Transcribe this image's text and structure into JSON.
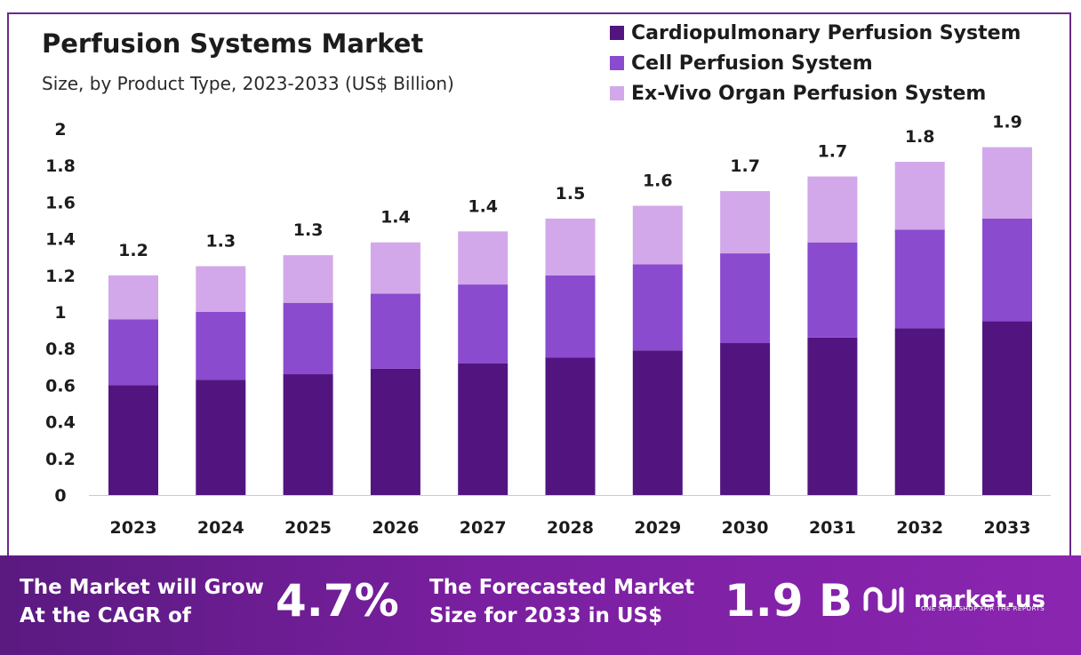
{
  "header": {
    "title": "Perfusion Systems Market",
    "subtitle": "Size, by Product Type, 2023-2033 (US$ Billion)"
  },
  "colors": {
    "cardio": "#521580",
    "cell": "#8a4bcf",
    "exvivo": "#d2a8ea",
    "footer": "#6c1f96"
  },
  "chart_data": {
    "type": "bar",
    "stacked": true,
    "categories": [
      "2023",
      "2024",
      "2025",
      "2026",
      "2027",
      "2028",
      "2029",
      "2030",
      "2031",
      "2032",
      "2033"
    ],
    "series": [
      {
        "name": "Cardiopulmonary Perfusion System",
        "values": [
          0.6,
          0.63,
          0.66,
          0.69,
          0.72,
          0.75,
          0.79,
          0.83,
          0.86,
          0.91,
          0.95
        ]
      },
      {
        "name": "Cell Perfusion System",
        "values": [
          0.36,
          0.37,
          0.39,
          0.41,
          0.43,
          0.45,
          0.47,
          0.49,
          0.52,
          0.54,
          0.56
        ]
      },
      {
        "name": "Ex-Vivo Organ Perfusion System",
        "values": [
          0.24,
          0.25,
          0.26,
          0.28,
          0.29,
          0.31,
          0.32,
          0.34,
          0.36,
          0.37,
          0.39
        ]
      }
    ],
    "totals_labels": [
      "1.2",
      "1.3",
      "1.3",
      "1.4",
      "1.4",
      "1.5",
      "1.6",
      "1.7",
      "1.7",
      "1.8",
      "1.9"
    ],
    "yticks": [
      "0",
      "0.2",
      "0.4",
      "0.6",
      "0.8",
      "1",
      "1.2",
      "1.4",
      "1.6",
      "1.8",
      "2"
    ],
    "ylim": [
      0,
      2
    ],
    "legend_position": "top-right",
    "grid": false
  },
  "footer": {
    "cagr_text_line1": "The Market will Grow",
    "cagr_text_line2": "At the CAGR of",
    "cagr_value": "4.7%",
    "forecast_text_line1": "The Forecasted Market",
    "forecast_text_line2": "Size for 2033 in US$",
    "forecast_value": "1.9 B",
    "brand_name": "market.us",
    "brand_tagline": "ONE STOP SHOP FOR THE REPORTS"
  }
}
